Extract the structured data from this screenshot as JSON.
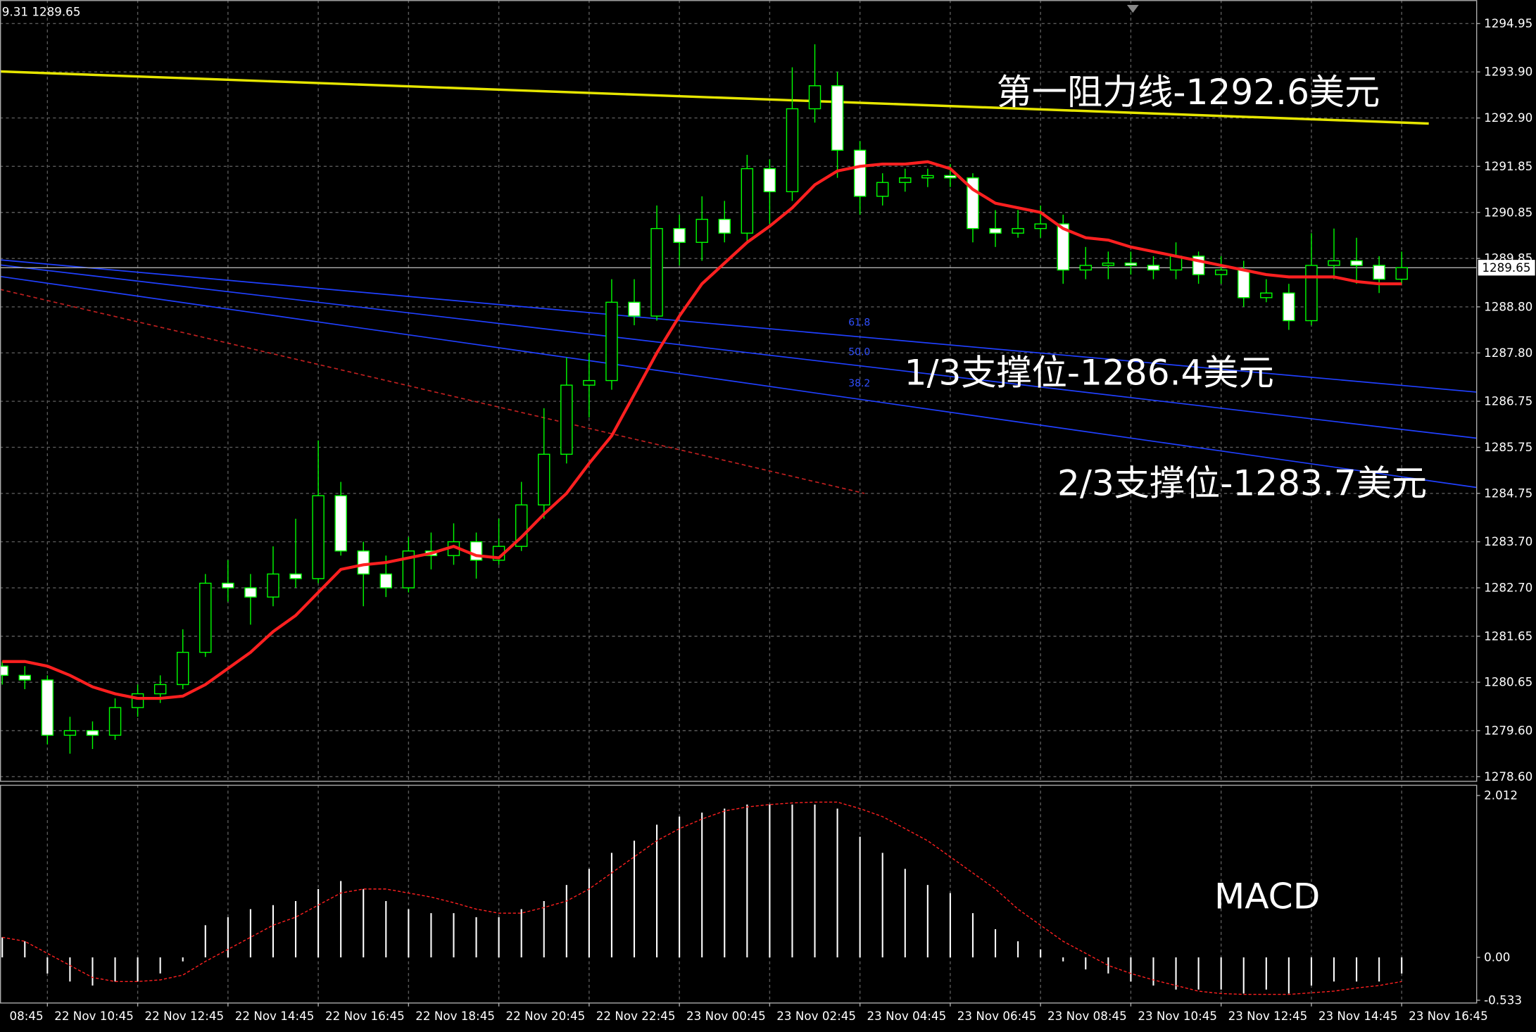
{
  "chart_data": [
    {
      "type": "candlestick",
      "header_text": "9.31 1289.65",
      "x": [
        2,
        3,
        4,
        5,
        6,
        7,
        8,
        9,
        10,
        11,
        12,
        13,
        14,
        15,
        16,
        17,
        18,
        19,
        20,
        21,
        22,
        23,
        24,
        25,
        26,
        27,
        28,
        29,
        30,
        31,
        32,
        33,
        34,
        35,
        36,
        37,
        38,
        39,
        40,
        41,
        42,
        43,
        44,
        45,
        46,
        47,
        48,
        49,
        50,
        51,
        52,
        53,
        54,
        55,
        56,
        57,
        58,
        59,
        60,
        61,
        62,
        63,
        64
      ],
      "ohlc": [
        [
          1281.0,
          1281.1,
          1280.6,
          1280.8
        ],
        [
          1280.8,
          1281.0,
          1280.5,
          1280.7
        ],
        [
          1280.7,
          1280.8,
          1279.3,
          1279.5
        ],
        [
          1279.5,
          1279.9,
          1279.1,
          1279.6
        ],
        [
          1279.6,
          1279.8,
          1279.2,
          1279.5
        ],
        [
          1279.5,
          1280.3,
          1279.4,
          1280.1
        ],
        [
          1280.1,
          1280.6,
          1279.9,
          1280.4
        ],
        [
          1280.4,
          1280.8,
          1280.2,
          1280.6
        ],
        [
          1280.6,
          1281.8,
          1280.5,
          1281.3
        ],
        [
          1281.3,
          1283.0,
          1281.2,
          1282.8
        ],
        [
          1282.8,
          1283.3,
          1282.4,
          1282.7
        ],
        [
          1282.7,
          1283.0,
          1281.9,
          1282.5
        ],
        [
          1282.5,
          1283.6,
          1282.3,
          1283.0
        ],
        [
          1283.0,
          1284.2,
          1282.7,
          1282.9
        ],
        [
          1282.9,
          1285.9,
          1282.8,
          1284.7
        ],
        [
          1284.7,
          1285.0,
          1283.4,
          1283.5
        ],
        [
          1283.5,
          1283.7,
          1282.3,
          1283.0
        ],
        [
          1283.0,
          1283.4,
          1282.5,
          1282.7
        ],
        [
          1282.7,
          1283.8,
          1282.6,
          1283.5
        ],
        [
          1283.5,
          1283.9,
          1283.1,
          1283.4
        ],
        [
          1283.4,
          1284.1,
          1283.2,
          1283.7
        ],
        [
          1283.7,
          1283.9,
          1282.9,
          1283.3
        ],
        [
          1283.3,
          1284.2,
          1283.2,
          1283.6
        ],
        [
          1283.6,
          1285.0,
          1283.5,
          1284.5
        ],
        [
          1284.5,
          1286.6,
          1284.2,
          1285.6
        ],
        [
          1285.6,
          1287.7,
          1285.4,
          1287.1
        ],
        [
          1287.1,
          1287.8,
          1286.4,
          1287.2
        ],
        [
          1287.2,
          1289.4,
          1287.0,
          1288.9
        ],
        [
          1288.9,
          1289.4,
          1288.4,
          1288.6
        ],
        [
          1288.6,
          1291.0,
          1288.5,
          1290.5
        ],
        [
          1290.5,
          1290.8,
          1289.7,
          1290.2
        ],
        [
          1290.2,
          1291.2,
          1289.8,
          1290.7
        ],
        [
          1290.7,
          1291.1,
          1290.2,
          1290.4
        ],
        [
          1290.4,
          1292.1,
          1290.2,
          1291.8
        ],
        [
          1291.8,
          1292.0,
          1290.6,
          1291.3
        ],
        [
          1291.3,
          1294.0,
          1291.1,
          1293.1
        ],
        [
          1293.1,
          1294.5,
          1292.8,
          1293.6
        ],
        [
          1293.6,
          1293.9,
          1291.6,
          1292.2
        ],
        [
          1292.2,
          1292.4,
          1290.8,
          1291.2
        ],
        [
          1291.2,
          1291.7,
          1291.0,
          1291.5
        ],
        [
          1291.5,
          1291.8,
          1291.3,
          1291.6
        ],
        [
          1291.6,
          1291.8,
          1291.4,
          1291.65
        ],
        [
          1291.65,
          1291.9,
          1291.4,
          1291.6
        ],
        [
          1291.6,
          1291.7,
          1290.2,
          1290.5
        ],
        [
          1290.5,
          1290.9,
          1290.1,
          1290.4
        ],
        [
          1290.4,
          1290.9,
          1290.3,
          1290.5
        ],
        [
          1290.5,
          1291.0,
          1290.3,
          1290.6
        ],
        [
          1290.6,
          1290.8,
          1289.3,
          1289.6
        ],
        [
          1289.6,
          1290.1,
          1289.4,
          1289.7
        ],
        [
          1289.7,
          1290.0,
          1289.4,
          1289.75
        ],
        [
          1289.75,
          1290.0,
          1289.5,
          1289.7
        ],
        [
          1289.7,
          1289.9,
          1289.4,
          1289.6
        ],
        [
          1289.6,
          1290.2,
          1289.4,
          1289.9
        ],
        [
          1289.9,
          1290.0,
          1289.3,
          1289.5
        ],
        [
          1289.5,
          1289.9,
          1289.3,
          1289.6
        ],
        [
          1289.6,
          1289.8,
          1288.8,
          1289.0
        ],
        [
          1289.0,
          1289.4,
          1288.9,
          1289.1
        ],
        [
          1289.1,
          1289.3,
          1288.3,
          1288.5
        ],
        [
          1288.5,
          1290.4,
          1288.4,
          1289.7
        ],
        [
          1289.7,
          1290.5,
          1289.4,
          1289.8
        ],
        [
          1289.8,
          1290.3,
          1289.3,
          1289.7
        ],
        [
          1289.7,
          1289.9,
          1289.1,
          1289.4
        ],
        [
          1289.4,
          1290.0,
          1289.3,
          1289.65
        ]
      ],
      "up_color": "#00ff00",
      "up_fill": "#000000",
      "down_fill": "#ffffff",
      "ma": {
        "color": "#ff2020",
        "values": [
          1281.1,
          1281.1,
          1281.0,
          1280.8,
          1280.55,
          1280.4,
          1280.3,
          1280.3,
          1280.35,
          1280.6,
          1280.95,
          1281.3,
          1281.75,
          1282.1,
          1282.6,
          1283.1,
          1283.2,
          1283.25,
          1283.35,
          1283.45,
          1283.6,
          1283.4,
          1283.35,
          1283.8,
          1284.3,
          1284.75,
          1285.4,
          1286.0,
          1286.9,
          1287.8,
          1288.6,
          1289.3,
          1289.75,
          1290.2,
          1290.55,
          1290.95,
          1291.45,
          1291.75,
          1291.85,
          1291.9,
          1291.9,
          1291.95,
          1291.8,
          1291.35,
          1291.05,
          1290.95,
          1290.85,
          1290.5,
          1290.3,
          1290.25,
          1290.1,
          1290.0,
          1289.9,
          1289.8,
          1289.7,
          1289.6,
          1289.5,
          1289.45,
          1289.45,
          1289.45,
          1289.35,
          1289.3,
          1289.3
        ]
      },
      "lines": [
        {
          "color": "#e6e600",
          "x": [
            1.9,
            65.2
          ],
          "y": [
            1293.91,
            1292.78
          ]
        },
        {
          "color": "#2040ff",
          "x": [
            1.9,
            67.3
          ],
          "y": [
            1289.82,
            1286.95
          ]
        },
        {
          "color": "#2040ff",
          "x": [
            1.9,
            67.3
          ],
          "y": [
            1289.71,
            1285.95
          ]
        },
        {
          "color": "#2040ff",
          "x": [
            1.9,
            67.3
          ],
          "y": [
            1289.46,
            1284.88
          ]
        },
        {
          "color": "#c02020",
          "dashed": true,
          "x": [
            1.9,
            40.2
          ],
          "y": [
            1289.18,
            1284.75
          ]
        }
      ],
      "fib_labels": [
        "61.8",
        "50.0",
        "38.2"
      ],
      "annotations": [
        "第一阻力线-1292.6美元",
        "1/3支撑位-1286.4美元",
        "2/3支撑位-1283.7美元"
      ],
      "current_price": 1289.65,
      "xlim": [
        1.9,
        67.3
      ],
      "ylim": [
        1278.51,
        1295.46
      ],
      "yticks": [
        1294.95,
        {
          "value": 1293.9,
          "label": "1293.90"
        },
        {
          "value": 1292.9,
          "label": "1292.90"
        },
        1291.85,
        1290.85,
        1289.85,
        {
          "value": 1288.8,
          "label": "1288.80"
        },
        {
          "value": 1287.8,
          "label": "1287.80"
        },
        1286.75,
        1285.75,
        1284.75,
        {
          "value": 1283.7,
          "label": "1283.70"
        },
        {
          "value": 1282.7,
          "label": "1282.70"
        },
        1281.65,
        1280.65,
        {
          "value": 1279.6,
          "label": "1279.60"
        },
        {
          "value": 1278.6,
          "label": "1278.60"
        }
      ],
      "xticks": [
        {
          "value": 0,
          "label": "08:45"
        },
        {
          "value": 4,
          "label": "22 Nov 10:45"
        },
        {
          "value": 8,
          "label": "22 Nov 12:45"
        },
        {
          "value": 12,
          "label": "22 Nov 14:45"
        },
        {
          "value": 16,
          "label": "22 Nov 16:45"
        },
        {
          "value": 20,
          "label": "22 Nov 18:45"
        },
        {
          "value": 24,
          "label": "22 Nov 20:45"
        },
        {
          "value": 28,
          "label": "22 Nov 22:45"
        },
        {
          "value": 32,
          "label": "23 Nov 00:45"
        },
        {
          "value": 36,
          "label": "23 Nov 02:45"
        },
        {
          "value": 40,
          "label": "23 Nov 04:45"
        },
        {
          "value": 44,
          "label": "23 Nov 06:45"
        },
        {
          "value": 48,
          "label": "23 Nov 08:45"
        },
        {
          "value": 52,
          "label": "23 Nov 10:45"
        },
        {
          "value": 56,
          "label": "23 Nov 12:45"
        },
        {
          "value": 60,
          "label": "23 Nov 14:45"
        },
        {
          "value": 64,
          "label": "23 Nov 16:45"
        }
      ],
      "grid": true
    },
    {
      "type": "macd",
      "title": "MACD",
      "x": [
        2,
        3,
        4,
        5,
        6,
        7,
        8,
        9,
        10,
        11,
        12,
        13,
        14,
        15,
        16,
        17,
        18,
        19,
        20,
        21,
        22,
        23,
        24,
        25,
        26,
        27,
        28,
        29,
        30,
        31,
        32,
        33,
        34,
        35,
        36,
        37,
        38,
        39,
        40,
        41,
        42,
        43,
        44,
        45,
        46,
        47,
        48,
        49,
        50,
        51,
        52,
        53,
        54,
        55,
        56,
        57,
        58,
        59,
        60,
        61,
        62,
        63,
        64
      ],
      "histogram": {
        "color": "#ffffff",
        "values": [
          0.25,
          0.2,
          -0.2,
          -0.3,
          -0.35,
          -0.3,
          -0.3,
          -0.2,
          -0.05,
          0.4,
          0.5,
          0.6,
          0.65,
          0.7,
          0.85,
          0.95,
          0.85,
          0.7,
          0.6,
          0.55,
          0.55,
          0.5,
          0.5,
          0.6,
          0.7,
          0.9,
          1.1,
          1.3,
          1.45,
          1.65,
          1.75,
          1.8,
          1.85,
          1.9,
          1.9,
          1.9,
          1.9,
          1.85,
          1.5,
          1.3,
          1.1,
          0.9,
          0.8,
          0.55,
          0.35,
          0.2,
          0.1,
          -0.05,
          -0.15,
          -0.2,
          -0.3,
          -0.35,
          -0.4,
          -0.4,
          -0.4,
          -0.45,
          -0.4,
          -0.45,
          -0.35,
          -0.3,
          -0.3,
          -0.3,
          -0.2
        ]
      },
      "signal": {
        "color": "#ff2020",
        "values": [
          0.25,
          0.2,
          0.05,
          -0.1,
          -0.25,
          -0.3,
          -0.3,
          -0.28,
          -0.22,
          -0.05,
          0.1,
          0.25,
          0.4,
          0.5,
          0.65,
          0.8,
          0.85,
          0.85,
          0.8,
          0.75,
          0.68,
          0.6,
          0.55,
          0.55,
          0.62,
          0.7,
          0.85,
          1.05,
          1.25,
          1.45,
          1.6,
          1.72,
          1.82,
          1.87,
          1.9,
          1.92,
          1.93,
          1.93,
          1.85,
          1.75,
          1.6,
          1.45,
          1.25,
          1.05,
          0.85,
          0.6,
          0.4,
          0.2,
          0.05,
          -0.1,
          -0.2,
          -0.28,
          -0.35,
          -0.42,
          -0.45,
          -0.46,
          -0.46,
          -0.46,
          -0.44,
          -0.42,
          -0.38,
          -0.35,
          -0.3
        ]
      },
      "ylim": [
        -0.561,
        2.146
      ],
      "yticks": [
        2.012,
        {
          "value": 0,
          "label": "0.00"
        },
        -0.533
      ]
    }
  ]
}
